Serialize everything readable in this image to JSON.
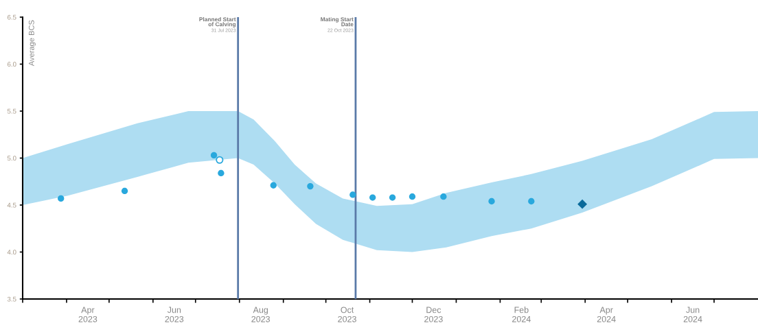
{
  "chart_data": {
    "type": "scatter",
    "ylabel": "Average BCS",
    "xlim": [
      "2023-03-01",
      "2024-08-01"
    ],
    "xticks": [
      {
        "value": "2023-03-01",
        "label": null
      },
      {
        "value": "2023-04-01",
        "label": null
      },
      {
        "value": "2023-04-16",
        "label": "Apr\n2023"
      },
      {
        "value": "2023-05-01",
        "label": null
      },
      {
        "value": "2023-06-01",
        "label": null
      },
      {
        "value": "2023-06-16",
        "label": "Jun\n2023"
      },
      {
        "value": "2023-07-01",
        "label": null
      },
      {
        "value": "2023-08-01",
        "label": null
      },
      {
        "value": "2023-08-16",
        "label": "Aug\n2023"
      },
      {
        "value": "2023-09-01",
        "label": null
      },
      {
        "value": "2023-10-01",
        "label": null
      },
      {
        "value": "2023-10-16",
        "label": "Oct\n2023"
      },
      {
        "value": "2023-11-01",
        "label": null
      },
      {
        "value": "2023-12-01",
        "label": null
      },
      {
        "value": "2023-12-16",
        "label": "Dec\n2023"
      },
      {
        "value": "2024-01-01",
        "label": null
      },
      {
        "value": "2024-02-01",
        "label": null
      },
      {
        "value": "2024-02-16",
        "label": "Feb\n2024"
      },
      {
        "value": "2024-03-01",
        "label": null
      },
      {
        "value": "2024-04-01",
        "label": null
      },
      {
        "value": "2024-04-16",
        "label": "Apr\n2024"
      },
      {
        "value": "2024-05-01",
        "label": null
      },
      {
        "value": "2024-06-01",
        "label": null
      },
      {
        "value": "2024-06-16",
        "label": "Jun\n2024"
      },
      {
        "value": "2024-07-01",
        "label": null
      }
    ],
    "ylim": [
      3.5,
      6.5
    ],
    "yticks": [
      {
        "value": 3.5,
        "label": "3.5"
      },
      {
        "value": 4,
        "label": "4.0"
      },
      {
        "value": 4.5,
        "label": "4.5"
      },
      {
        "value": 5,
        "label": "5.0"
      },
      {
        "value": 5.5,
        "label": "5.5"
      },
      {
        "value": 6,
        "label": "6.0"
      },
      {
        "value": 6.5,
        "label": "6.5"
      }
    ],
    "grid": false,
    "legend": false,
    "series": [
      {
        "type": "line",
        "color": "#aeddf2",
        "values": [
          null,
          null,
          null,
          null,
          null,
          null,
          null,
          null,
          null,
          null,
          null,
          null,
          null,
          null,
          null,
          null,
          null,
          null,
          null
        ],
        "x": [
          "2023-03-01",
          "2023-04-02",
          "2023-05-21",
          "2023-06-26",
          "2023-07-31",
          "2023-08-11",
          "2023-08-26",
          "2023-09-09",
          "2023-09-24",
          "2023-10-13",
          "2023-11-06",
          "2023-12-01",
          "2023-12-25",
          "2024-01-26",
          "2024-02-23",
          "2024-03-30",
          "2024-05-18",
          "2024-07-01",
          "2024-08-01"
        ],
        "lower": [
          4.5,
          4.6,
          4.8,
          4.95,
          5.0,
          4.93,
          4.73,
          4.51,
          4.3,
          4.13,
          4.02,
          4.0,
          4.05,
          4.17,
          4.25,
          4.42,
          4.7,
          4.99,
          5.0
        ],
        "upper": [
          5.0,
          5.15,
          5.37,
          5.5,
          5.5,
          5.41,
          5.18,
          4.93,
          4.73,
          4.57,
          4.49,
          4.51,
          4.63,
          4.74,
          4.83,
          4.97,
          5.2,
          5.49,
          5.5
        ]
      },
      {
        "color": "#29a8dd",
        "marker": "circle",
        "x": [
          "2023-03-28",
          "2023-05-12",
          "2023-07-14",
          "2023-07-19",
          "2023-08-25",
          "2023-09-20",
          "2023-10-20",
          "2023-11-03",
          "2023-11-17",
          "2023-12-01",
          "2023-12-23",
          "2024-01-26",
          "2024-02-23"
        ],
        "values": [
          4.57,
          4.65,
          5.03,
          4.84,
          4.71,
          4.7,
          4.61,
          4.58,
          4.58,
          4.59,
          4.59,
          4.54,
          4.54
        ]
      },
      {
        "color": "#ffffff",
        "marker": "circle",
        "x": [
          "2023-07-18"
        ],
        "values": [
          4.98
        ]
      },
      {
        "color": "#0a6a9a",
        "marker": "diamond",
        "x": [
          "2024-03-30"
        ],
        "values": [
          4.51
        ]
      }
    ],
    "ref_lines": [
      {
        "axis": "x",
        "value": "2023-07-31",
        "label": "Planned Start\nof Calving\n31 Jul 2023",
        "color": "#5a7aa8"
      },
      {
        "axis": "x",
        "value": "2023-10-22",
        "label": "Mating Start\nDate\n22 Oct 2023",
        "color": "#5a7aa8"
      }
    ]
  }
}
